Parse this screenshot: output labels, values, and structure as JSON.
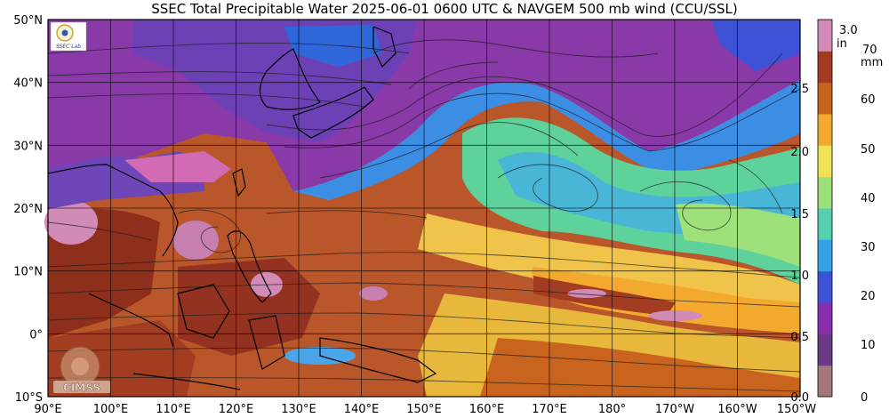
{
  "title": "SSEC Total Precipitable Water  2025-06-01 0600 UTC & NAVGEM 500 mb wind (CCU/SSL)",
  "lat_labels": [
    "50°N",
    "40°N",
    "30°N",
    "20°N",
    "10°N",
    "0°",
    "10°S"
  ],
  "lon_labels": [
    "90°E",
    "100°E",
    "110°E",
    "120°E",
    "130°E",
    "140°E",
    "150°E",
    "160°E",
    "170°E",
    "180°",
    "170°W",
    "160°W",
    "150°W"
  ],
  "colorbar": {
    "unit_in": "in",
    "unit_mm": "mm",
    "inch_ticks": [
      "3.0",
      "2.5",
      "2.0",
      "1.5",
      "1.0",
      "0.5",
      "0.0"
    ],
    "mm_ticks": [
      "70",
      "60",
      "50",
      "40",
      "30",
      "20",
      "10",
      "0"
    ],
    "colors": [
      "#a2787a",
      "#6a3a86",
      "#8a2fb0",
      "#3d52d6",
      "#34a3e8",
      "#55d0b0",
      "#9ee07a",
      "#f0e255",
      "#f3a92e",
      "#c9641f",
      "#a43a22",
      "#d28ab6"
    ]
  },
  "logos": {
    "top_left": "SSEC Lab",
    "bottom_left": "CIMSS"
  }
}
